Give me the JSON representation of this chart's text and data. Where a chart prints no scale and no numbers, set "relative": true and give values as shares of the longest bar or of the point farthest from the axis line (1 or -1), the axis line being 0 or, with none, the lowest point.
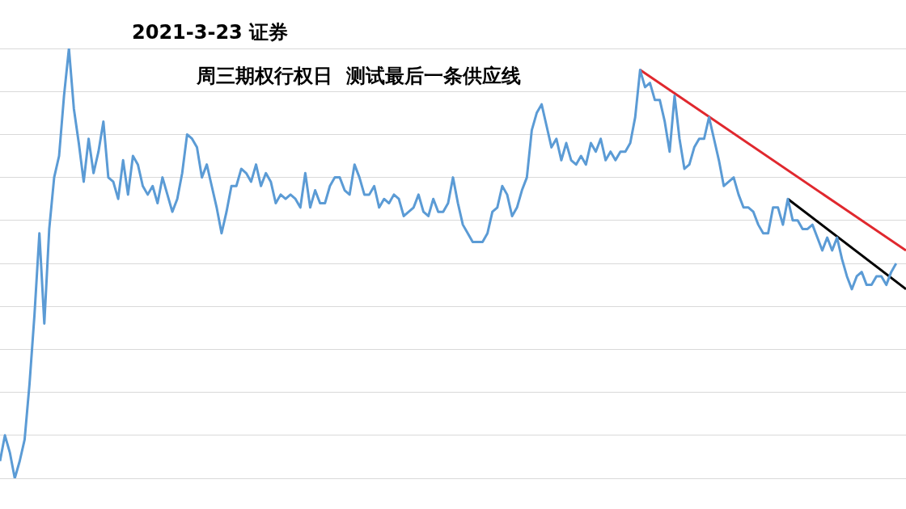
{
  "chart_data": {
    "type": "line",
    "title": "2021-3-23 证券",
    "subtitle": "周三期权行权日  测试最后一条供应线",
    "relative": true,
    "grid": "y",
    "categories": [
      null,
      null,
      null,
      null,
      null,
      null,
      null,
      null,
      null,
      null,
      null,
      null,
      null,
      null,
      null,
      null,
      null,
      null,
      null,
      null,
      null,
      null,
      null,
      null,
      null,
      null,
      null,
      null,
      null,
      null,
      null,
      null,
      null,
      null,
      null,
      null,
      null,
      null,
      null,
      null,
      null,
      null,
      null,
      null,
      null,
      null,
      null,
      null,
      null,
      null,
      null,
      null,
      null,
      null,
      null,
      null,
      null,
      null,
      null,
      null,
      null,
      null,
      null,
      null,
      null,
      null,
      null,
      null,
      null,
      null,
      null,
      null,
      null,
      null,
      null,
      null,
      null,
      null,
      null,
      null,
      null,
      null,
      null,
      null,
      null,
      null,
      null,
      null,
      null,
      null,
      null,
      null,
      null,
      null,
      null,
      null,
      null,
      null,
      null,
      null,
      null,
      null,
      null,
      null,
      null,
      null,
      null,
      null,
      null,
      null,
      null,
      null,
      null,
      null,
      null,
      null,
      null,
      null,
      null,
      null,
      null,
      null,
      null,
      null,
      null,
      null,
      null,
      null,
      null,
      null,
      null,
      null,
      null,
      null,
      null,
      null,
      null,
      null,
      null,
      null,
      null,
      null,
      null,
      null,
      null,
      null,
      null,
      null,
      null,
      null,
      null,
      null,
      null,
      null,
      null,
      null,
      null,
      null,
      null,
      null,
      null,
      null,
      null,
      null,
      null,
      null,
      null,
      null,
      null,
      null,
      null,
      null,
      null,
      null,
      null,
      null,
      null,
      null,
      null,
      null,
      null,
      null,
      null,
      null,
      null
    ],
    "series": [
      {
        "color": "#5b9bd5",
        "values": [
          0.04,
          0.1,
          0.06,
          0,
          0.04,
          0.09,
          0.22,
          0.38,
          0.57,
          0.36,
          0.58,
          0.7,
          0.75,
          0.89,
          1,
          0.86,
          0.78,
          0.69,
          0.79,
          0.71,
          0.76,
          0.83,
          0.7,
          0.69,
          0.65,
          0.74,
          0.66,
          0.75,
          0.73,
          0.68,
          0.66,
          0.68,
          0.64,
          0.7,
          0.66,
          0.62,
          0.65,
          0.71,
          0.8,
          0.79,
          0.77,
          0.7,
          0.73,
          0.68,
          0.63,
          0.57,
          0.62,
          0.68,
          0.68,
          0.72,
          0.71,
          0.69,
          0.73,
          0.68,
          0.71,
          0.69,
          0.64,
          0.66,
          0.65,
          0.66,
          0.65,
          0.63,
          0.71,
          0.63,
          0.67,
          0.64,
          0.64,
          0.68,
          0.7,
          0.7,
          0.67,
          0.66,
          0.73,
          0.7,
          0.66,
          0.66,
          0.68,
          0.63,
          0.65,
          0.64,
          0.66,
          0.65,
          0.61,
          0.62,
          0.63,
          0.66,
          0.62,
          0.61,
          0.65,
          0.62,
          0.62,
          0.64,
          0.7,
          0.64,
          0.59,
          0.57,
          0.55,
          0.55,
          0.55,
          0.57,
          0.62,
          0.63,
          0.68,
          0.66,
          0.61,
          0.63,
          0.67,
          0.7,
          0.81,
          0.85,
          0.87,
          0.82,
          0.77,
          0.79,
          0.74,
          0.78,
          0.74,
          0.73,
          0.75,
          0.73,
          0.78,
          0.76,
          0.79,
          0.74,
          0.76,
          0.74,
          0.76,
          0.76,
          0.78,
          0.84,
          0.95,
          0.91,
          0.92,
          0.88,
          0.88,
          0.83,
          0.76,
          0.89,
          0.79,
          0.72,
          0.73,
          0.77,
          0.79,
          0.79,
          0.84,
          0.79,
          0.74,
          0.68,
          0.69,
          0.7,
          0.66,
          0.63,
          0.63,
          0.62,
          0.59,
          0.57,
          0.57,
          0.63,
          0.63,
          0.59,
          0.65,
          0.6,
          0.6,
          0.58,
          0.58,
          0.59,
          0.56,
          0.53,
          0.56,
          0.53,
          0.56,
          0.51,
          0.47,
          0.44,
          0.47,
          0.48,
          0.45,
          0.45,
          0.47,
          0.47,
          0.45,
          0.48,
          0.5,
          null,
          null
        ]
      },
      {
        "color": "#e0282e",
        "values": [
          null,
          null,
          null,
          null,
          null,
          null,
          null,
          null,
          null,
          null,
          null,
          null,
          null,
          null,
          null,
          null,
          null,
          null,
          null,
          null,
          null,
          null,
          null,
          null,
          null,
          null,
          null,
          null,
          null,
          null,
          null,
          null,
          null,
          null,
          null,
          null,
          null,
          null,
          null,
          null,
          null,
          null,
          null,
          null,
          null,
          null,
          null,
          null,
          null,
          null,
          null,
          null,
          null,
          null,
          null,
          null,
          null,
          null,
          null,
          null,
          null,
          null,
          null,
          null,
          null,
          null,
          null,
          null,
          null,
          null,
          null,
          null,
          null,
          null,
          null,
          null,
          null,
          null,
          null,
          null,
          null,
          null,
          null,
          null,
          null,
          null,
          null,
          null,
          null,
          null,
          null,
          null,
          null,
          null,
          null,
          null,
          null,
          null,
          null,
          null,
          null,
          null,
          null,
          null,
          null,
          null,
          null,
          null,
          null,
          null,
          null,
          null,
          null,
          null,
          null,
          null,
          null,
          null,
          null,
          null,
          null,
          null,
          null,
          null,
          null,
          null,
          null,
          null,
          null,
          null,
          0.95,
          null,
          null,
          null,
          null,
          null,
          null,
          null,
          null,
          null,
          null,
          null,
          null,
          null,
          null,
          null,
          null,
          null,
          null,
          null,
          null,
          null,
          null,
          null,
          null,
          null,
          null,
          null,
          null,
          null,
          null,
          null,
          null,
          null,
          null,
          null,
          null,
          null,
          null,
          null,
          null,
          null,
          null,
          null,
          null,
          null,
          null,
          null,
          null,
          null,
          null,
          null,
          null,
          null,
          0.53
        ]
      },
      {
        "color": "#000000",
        "values": [
          null,
          null,
          null,
          null,
          null,
          null,
          null,
          null,
          null,
          null,
          null,
          null,
          null,
          null,
          null,
          null,
          null,
          null,
          null,
          null,
          null,
          null,
          null,
          null,
          null,
          null,
          null,
          null,
          null,
          null,
          null,
          null,
          null,
          null,
          null,
          null,
          null,
          null,
          null,
          null,
          null,
          null,
          null,
          null,
          null,
          null,
          null,
          null,
          null,
          null,
          null,
          null,
          null,
          null,
          null,
          null,
          null,
          null,
          null,
          null,
          null,
          null,
          null,
          null,
          null,
          null,
          null,
          null,
          null,
          null,
          null,
          null,
          null,
          null,
          null,
          null,
          null,
          null,
          null,
          null,
          null,
          null,
          null,
          null,
          null,
          null,
          null,
          null,
          null,
          null,
          null,
          null,
          null,
          null,
          null,
          null,
          null,
          null,
          null,
          null,
          null,
          null,
          null,
          null,
          null,
          null,
          null,
          null,
          null,
          null,
          null,
          null,
          null,
          null,
          null,
          null,
          null,
          null,
          null,
          null,
          null,
          null,
          null,
          null,
          null,
          null,
          null,
          null,
          null,
          null,
          null,
          null,
          null,
          null,
          null,
          null,
          null,
          null,
          null,
          null,
          null,
          null,
          null,
          null,
          null,
          null,
          null,
          null,
          null,
          null,
          null,
          null,
          null,
          null,
          null,
          null,
          null,
          null,
          null,
          null,
          0.65,
          null,
          null,
          null,
          null,
          null,
          null,
          null,
          null,
          null,
          null,
          null,
          null,
          null,
          null,
          null,
          null,
          null,
          null,
          null,
          null,
          null,
          null,
          null,
          0.44
        ]
      }
    ]
  }
}
